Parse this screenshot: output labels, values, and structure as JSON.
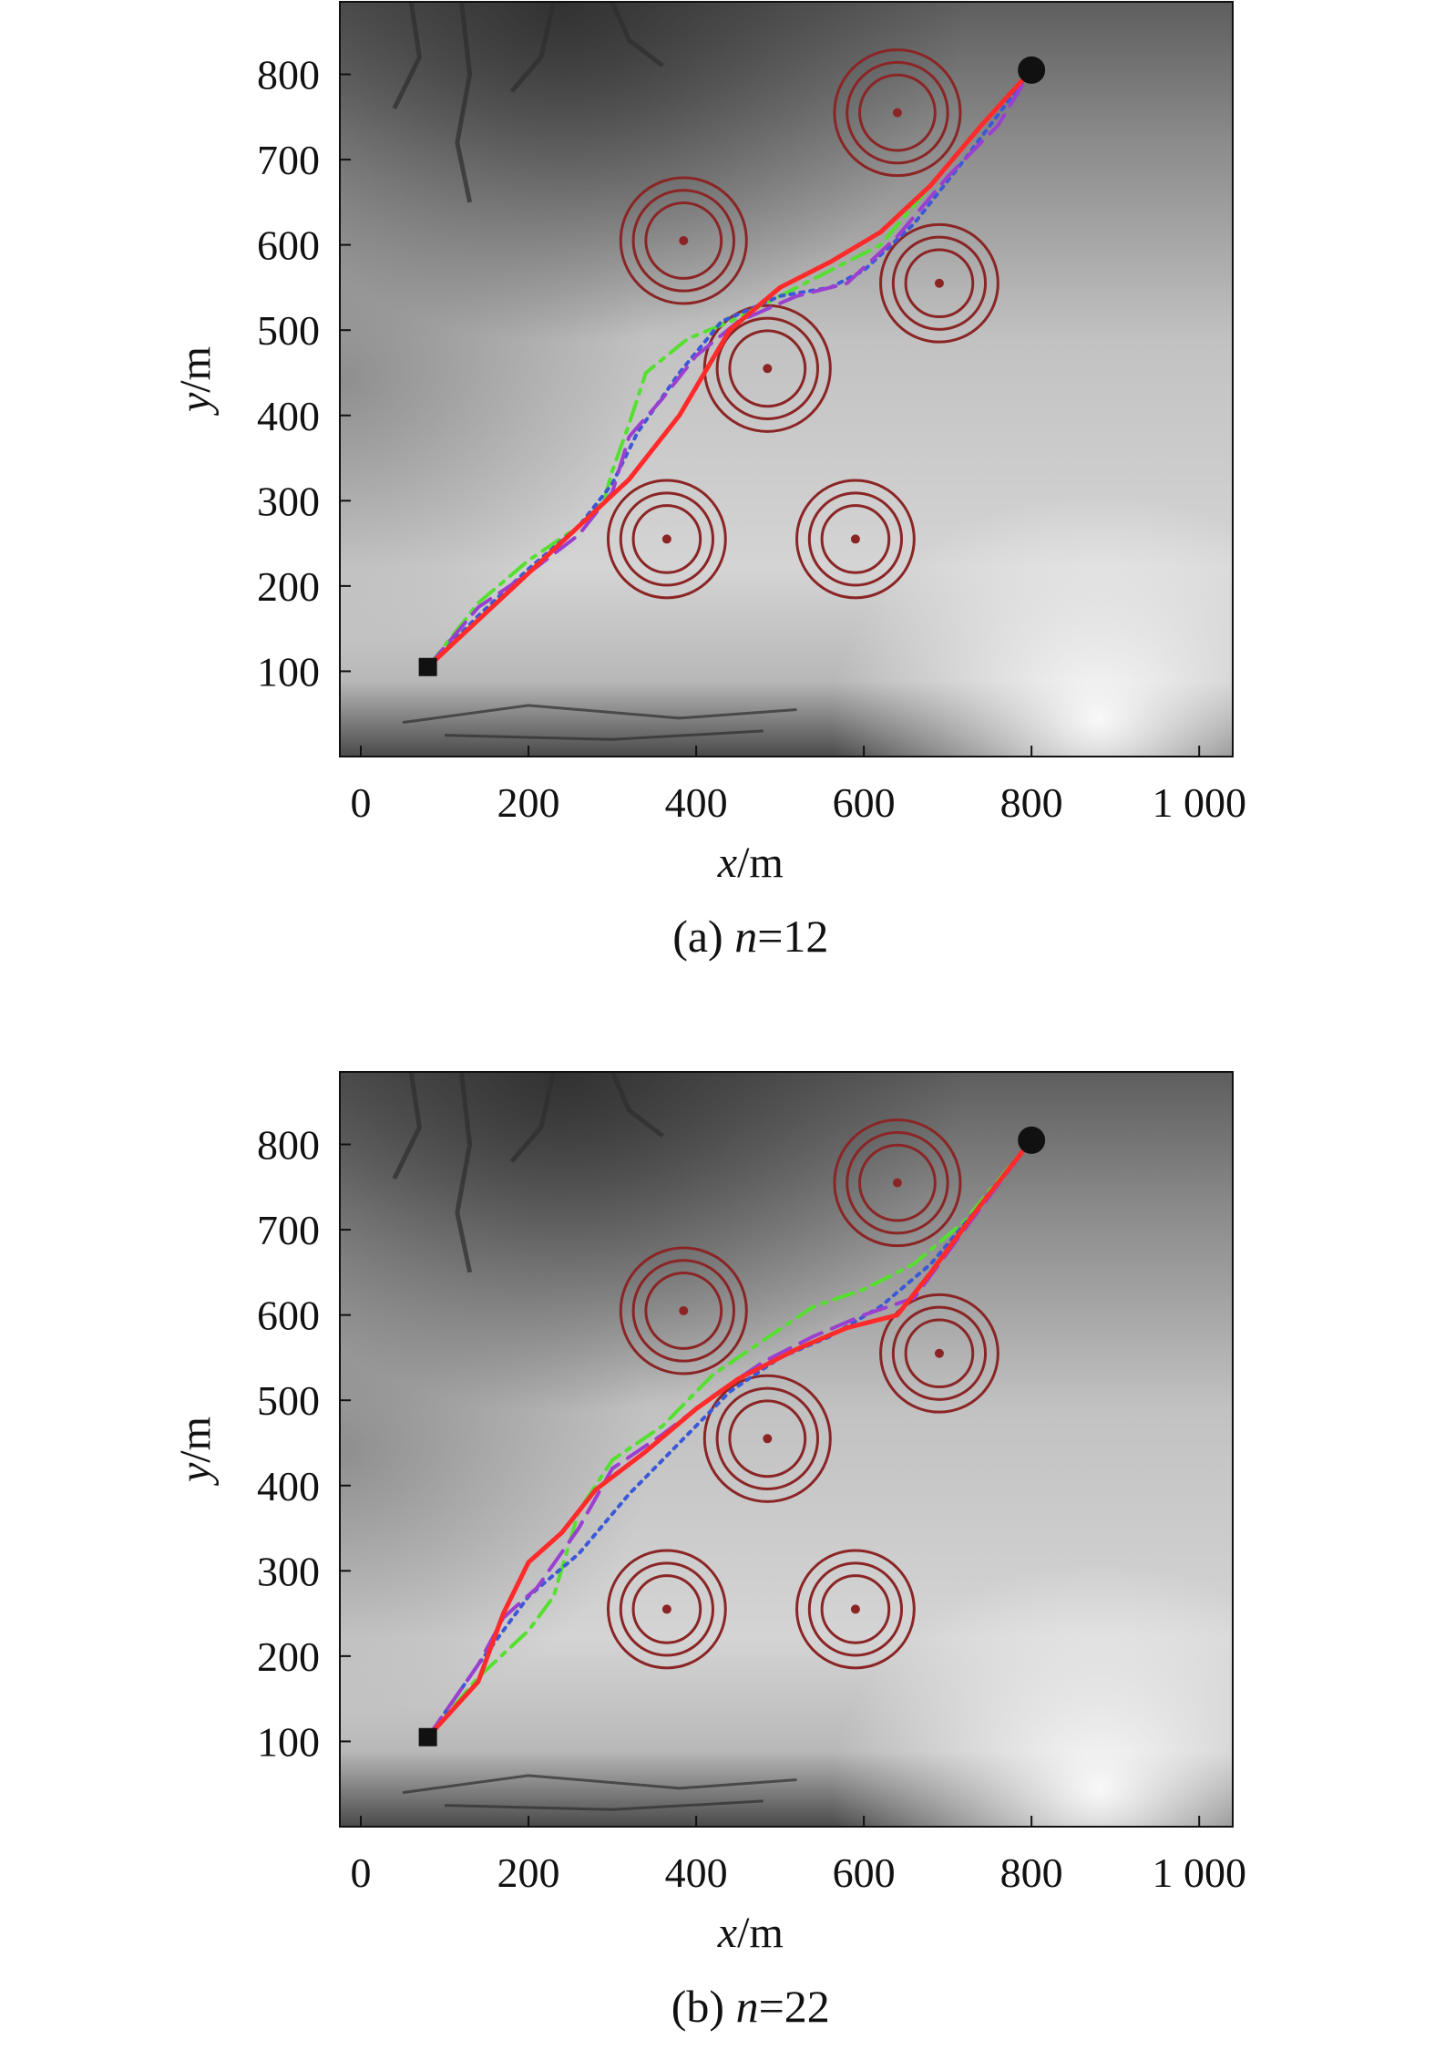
{
  "chart_data": [
    {
      "type": "line",
      "title": "",
      "caption": {
        "prefix": "(a) ",
        "var": "n",
        "suffix": "=12"
      },
      "xlabel": {
        "var": "x",
        "unit": "/m"
      },
      "ylabel": {
        "var": "y",
        "unit": "/m"
      },
      "xlim": [
        -25,
        1040
      ],
      "ylim": [
        0,
        885
      ],
      "xticks": [
        0,
        200,
        400,
        600,
        800,
        1000
      ],
      "xtick_labels": [
        "0",
        "200",
        "400",
        "600",
        "800",
        "1 000"
      ],
      "yticks": [
        100,
        200,
        300,
        400,
        500,
        600,
        700,
        800
      ],
      "ytick_labels": [
        "100",
        "200",
        "300",
        "400",
        "500",
        "600",
        "700",
        "800"
      ],
      "grid": false,
      "background": "grayscale terrain elevation map",
      "start": {
        "x": 80,
        "y": 105,
        "marker": "square"
      },
      "goal": {
        "x": 800,
        "y": 805,
        "marker": "circle"
      },
      "threats": [
        {
          "x": 640,
          "y": 755,
          "radii": [
            45,
            60,
            75
          ]
        },
        {
          "x": 385,
          "y": 605,
          "radii": [
            45,
            60,
            75
          ]
        },
        {
          "x": 690,
          "y": 555,
          "radii": [
            40,
            55,
            70
          ]
        },
        {
          "x": 485,
          "y": 455,
          "radii": [
            45,
            60,
            75
          ]
        },
        {
          "x": 365,
          "y": 255,
          "radii": [
            40,
            55,
            70
          ]
        },
        {
          "x": 590,
          "y": 255,
          "radii": [
            40,
            55,
            70
          ]
        }
      ],
      "threat_color": "#8b2525",
      "series": [
        {
          "color": "#ff2a2a",
          "style": "solid",
          "x": [
            80,
            140,
            200,
            260,
            320,
            380,
            440,
            500,
            560,
            620,
            680,
            740,
            800
          ],
          "y": [
            105,
            160,
            215,
            270,
            325,
            400,
            500,
            550,
            580,
            615,
            670,
            740,
            805
          ]
        },
        {
          "color": "#9b3fd0",
          "style": "dashed",
          "x": [
            80,
            140,
            200,
            260,
            300,
            320,
            360,
            400,
            450,
            520,
            580,
            640,
            700,
            760,
            800
          ],
          "y": [
            105,
            175,
            215,
            260,
            310,
            375,
            420,
            470,
            510,
            540,
            555,
            610,
            680,
            740,
            805
          ]
        },
        {
          "color": "#3a58d8",
          "style": "dotted",
          "x": [
            80,
            140,
            200,
            260,
            300,
            330,
            380,
            430,
            500,
            560,
            600,
            660,
            720,
            800
          ],
          "y": [
            105,
            165,
            220,
            270,
            320,
            380,
            450,
            510,
            540,
            550,
            570,
            625,
            700,
            805
          ]
        },
        {
          "color": "#55e030",
          "style": "dashdot",
          "x": [
            80,
            140,
            200,
            260,
            290,
            300,
            320,
            340,
            390,
            440,
            500,
            560,
            620,
            680,
            740,
            800
          ],
          "y": [
            105,
            180,
            230,
            270,
            300,
            335,
            390,
            450,
            490,
            510,
            540,
            570,
            600,
            670,
            740,
            805
          ]
        }
      ]
    },
    {
      "type": "line",
      "title": "",
      "caption": {
        "prefix": "(b) ",
        "var": "n",
        "suffix": "=22"
      },
      "xlabel": {
        "var": "x",
        "unit": "/m"
      },
      "ylabel": {
        "var": "y",
        "unit": "/m"
      },
      "xlim": [
        -25,
        1040
      ],
      "ylim": [
        0,
        885
      ],
      "xticks": [
        0,
        200,
        400,
        600,
        800,
        1000
      ],
      "xtick_labels": [
        "0",
        "200",
        "400",
        "600",
        "800",
        "1 000"
      ],
      "yticks": [
        100,
        200,
        300,
        400,
        500,
        600,
        700,
        800
      ],
      "ytick_labels": [
        "100",
        "200",
        "300",
        "400",
        "500",
        "600",
        "700",
        "800"
      ],
      "grid": false,
      "background": "grayscale terrain elevation map",
      "start": {
        "x": 80,
        "y": 105,
        "marker": "square"
      },
      "goal": {
        "x": 800,
        "y": 805,
        "marker": "circle"
      },
      "threats": [
        {
          "x": 640,
          "y": 755,
          "radii": [
            45,
            60,
            75
          ]
        },
        {
          "x": 385,
          "y": 605,
          "radii": [
            45,
            60,
            75
          ]
        },
        {
          "x": 690,
          "y": 555,
          "radii": [
            40,
            55,
            70
          ]
        },
        {
          "x": 485,
          "y": 455,
          "radii": [
            45,
            60,
            75
          ]
        },
        {
          "x": 365,
          "y": 255,
          "radii": [
            40,
            55,
            70
          ]
        },
        {
          "x": 590,
          "y": 255,
          "radii": [
            40,
            55,
            70
          ]
        }
      ],
      "threat_color": "#8b2525",
      "series": [
        {
          "color": "#ff2a2a",
          "style": "solid",
          "x": [
            80,
            140,
            170,
            200,
            240,
            280,
            300,
            340,
            400,
            450,
            520,
            580,
            640,
            680,
            740,
            800
          ],
          "y": [
            105,
            170,
            250,
            310,
            345,
            395,
            410,
            440,
            490,
            525,
            560,
            585,
            600,
            650,
            730,
            805
          ]
        },
        {
          "color": "#9b3fd0",
          "style": "dashed",
          "x": [
            80,
            140,
            170,
            210,
            260,
            300,
            360,
            420,
            480,
            540,
            600,
            660,
            720,
            800
          ],
          "y": [
            105,
            190,
            245,
            280,
            350,
            420,
            460,
            505,
            545,
            575,
            600,
            620,
            700,
            805
          ]
        },
        {
          "color": "#3a58d8",
          "style": "dotted",
          "x": [
            80,
            140,
            200,
            260,
            320,
            380,
            440,
            500,
            560,
            620,
            680,
            740,
            800
          ],
          "y": [
            105,
            190,
            270,
            320,
            390,
            450,
            510,
            550,
            575,
            610,
            660,
            730,
            805
          ]
        },
        {
          "color": "#55e030",
          "style": "dashdot",
          "x": [
            80,
            140,
            200,
            230,
            260,
            300,
            360,
            420,
            480,
            540,
            600,
            660,
            720,
            800
          ],
          "y": [
            105,
            175,
            230,
            270,
            370,
            430,
            470,
            530,
            570,
            610,
            630,
            660,
            710,
            805
          ]
        }
      ]
    }
  ]
}
